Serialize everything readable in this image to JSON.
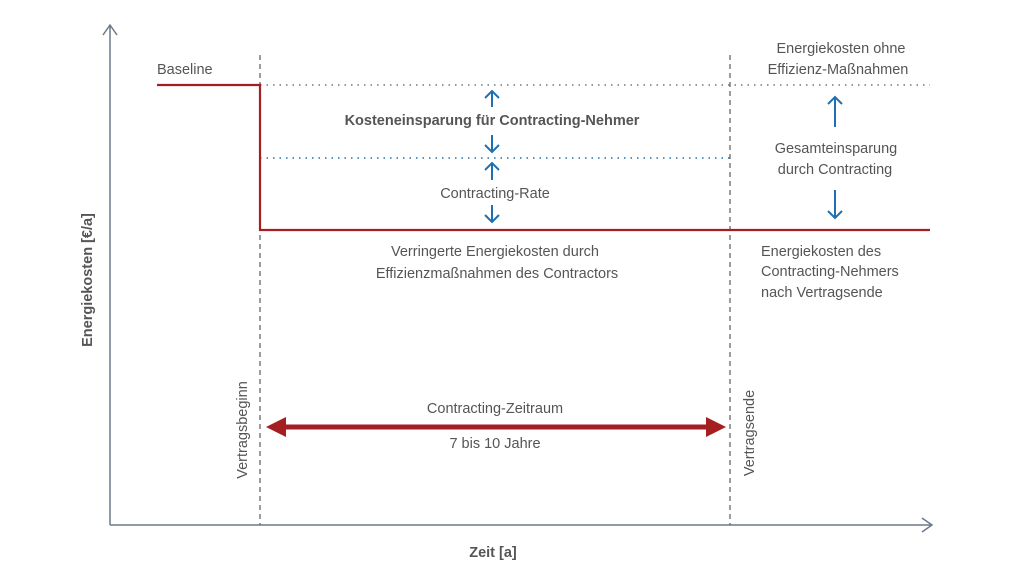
{
  "axes": {
    "y_label": "Energiekosten [€/a]",
    "x_label": "Zeit [a]"
  },
  "labels": {
    "baseline": "Baseline",
    "savings_client": "Kosteneinsparung für Contracting-Nehmer",
    "contracting_rate": "Contracting-Rate",
    "reduced_costs": [
      "Verringerte Energiekosten durch",
      "Effizienzmaßnahmen des Contractors"
    ],
    "costs_without": [
      "Energiekosten ohne",
      "Effizienz-Maßnahmen"
    ],
    "total_savings": [
      "Gesamteinsparung",
      "durch Contracting"
    ],
    "costs_after": [
      "Energiekosten des",
      "Contracting-Nehmers",
      "nach Vertragsende"
    ],
    "contract_start": "Vertragsbeginn",
    "contract_end": "Vertragsende",
    "period": "Contracting-Zeitraum",
    "period_duration": "7 bis 10 Jahre"
  },
  "colors": {
    "cost_line": "#a51e22",
    "arrows": "#1f6fb2",
    "axis": "#6b7a8a",
    "text": "#555555"
  }
}
